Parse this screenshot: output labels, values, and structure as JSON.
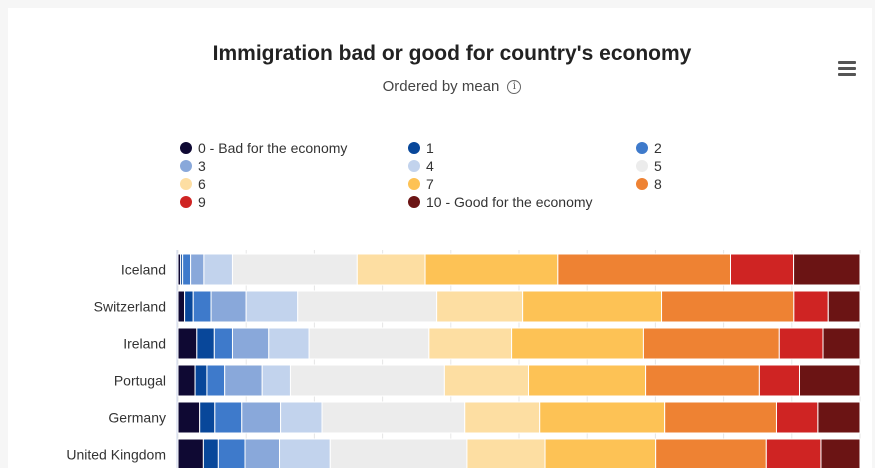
{
  "chart_data": {
    "type": "bar",
    "stacked": "percent",
    "orientation": "horizontal",
    "title": "Immigration bad or good for country's economy",
    "subtitle": "Ordered by mean",
    "categories": [
      "Iceland",
      "Switzerland",
      "Ireland",
      "Portugal",
      "Germany",
      "United Kingdom"
    ],
    "series": [
      {
        "name": "0 - Bad for the economy",
        "color": "#0f0933",
        "values": [
          0.4,
          1.0,
          2.8,
          2.6,
          3.3,
          3.9
        ]
      },
      {
        "name": "1",
        "color": "#08479a",
        "values": [
          0.3,
          1.3,
          2.6,
          1.8,
          2.3,
          2.3
        ]
      },
      {
        "name": "2",
        "color": "#3e7acb",
        "values": [
          1.2,
          2.7,
          2.7,
          2.7,
          4.1,
          4.1
        ]
      },
      {
        "name": "3",
        "color": "#89a8da",
        "values": [
          2.0,
          5.3,
          5.4,
          5.7,
          5.9,
          5.3
        ]
      },
      {
        "name": "4",
        "color": "#c2d3ed",
        "values": [
          4.3,
          7.8,
          6.0,
          4.3,
          6.3,
          7.8
        ]
      },
      {
        "name": "5",
        "color": "#ececec",
        "values": [
          18.8,
          21.0,
          17.8,
          23.4,
          21.7,
          21.0
        ]
      },
      {
        "name": "6",
        "color": "#fddea2",
        "values": [
          10.2,
          13.0,
          12.3,
          12.8,
          11.4,
          12.0
        ]
      },
      {
        "name": "7",
        "color": "#fdc255",
        "values": [
          20.0,
          21.0,
          19.6,
          17.8,
          19.0,
          17.0
        ]
      },
      {
        "name": "8",
        "color": "#ee8233",
        "values": [
          26.0,
          20.0,
          20.2,
          17.3,
          17.0,
          17.0
        ]
      },
      {
        "name": "9",
        "color": "#cf2423",
        "values": [
          9.5,
          5.2,
          6.5,
          6.1,
          6.3,
          8.4
        ]
      },
      {
        "name": "10 - Good for the economy",
        "color": "#6b1414",
        "values": [
          10.0,
          4.8,
          5.5,
          9.2,
          6.4,
          6.0
        ]
      }
    ],
    "xlim": [
      0,
      100
    ],
    "legend_position": "top",
    "grid": true
  }
}
